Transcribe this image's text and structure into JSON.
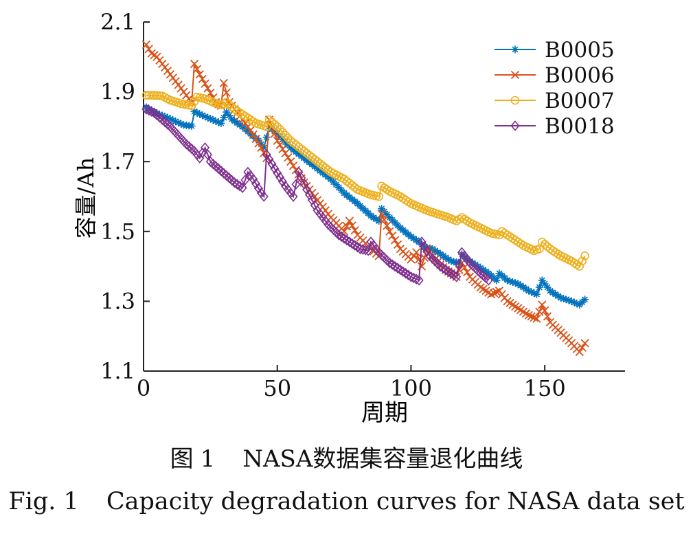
{
  "chart_data": {
    "type": "line",
    "xlabel": "周期",
    "ylabel": "容量/Ah",
    "xlim": [
      0,
      180
    ],
    "ylim": [
      1.1,
      2.1
    ],
    "xticks": [
      0,
      50,
      100,
      150
    ],
    "yticks": [
      1.1,
      1.3,
      1.5,
      1.7,
      1.9,
      2.1
    ],
    "xtick_labels": [
      "0",
      "50",
      "100",
      "150"
    ],
    "ytick_labels": [
      "1.1",
      "1.3",
      "1.5",
      "1.7",
      "1.9",
      "2.1"
    ],
    "legend_position": "top-right",
    "series": [
      {
        "name": "B0005",
        "color": "#0072bd",
        "marker": "asterisk",
        "points": [
          [
            1,
            1.856
          ],
          [
            3,
            1.846
          ],
          [
            6,
            1.835
          ],
          [
            9,
            1.826
          ],
          [
            12,
            1.815
          ],
          [
            15,
            1.805
          ],
          [
            18,
            1.802
          ],
          [
            19,
            1.844
          ],
          [
            21,
            1.836
          ],
          [
            24,
            1.826
          ],
          [
            27,
            1.816
          ],
          [
            29,
            1.81
          ],
          [
            31,
            1.842
          ],
          [
            33,
            1.822
          ],
          [
            37,
            1.8
          ],
          [
            40,
            1.78
          ],
          [
            43,
            1.76
          ],
          [
            45,
            1.74
          ],
          [
            47,
            1.8
          ],
          [
            50,
            1.78
          ],
          [
            55,
            1.74
          ],
          [
            60,
            1.71
          ],
          [
            65,
            1.68
          ],
          [
            70,
            1.65
          ],
          [
            75,
            1.61
          ],
          [
            80,
            1.58
          ],
          [
            85,
            1.545
          ],
          [
            88,
            1.53
          ],
          [
            89,
            1.565
          ],
          [
            92,
            1.54
          ],
          [
            96,
            1.51
          ],
          [
            100,
            1.485
          ],
          [
            103,
            1.47
          ],
          [
            105,
            1.455
          ],
          [
            108,
            1.45
          ],
          [
            112,
            1.43
          ],
          [
            115,
            1.415
          ],
          [
            118,
            1.41
          ],
          [
            119,
            1.435
          ],
          [
            121,
            1.42
          ],
          [
            125,
            1.4
          ],
          [
            129,
            1.38
          ],
          [
            132,
            1.36
          ],
          [
            133,
            1.38
          ],
          [
            136,
            1.36
          ],
          [
            140,
            1.35
          ],
          [
            144,
            1.33
          ],
          [
            147,
            1.32
          ],
          [
            149,
            1.36
          ],
          [
            152,
            1.33
          ],
          [
            156,
            1.31
          ],
          [
            160,
            1.3
          ],
          [
            163,
            1.29
          ],
          [
            165,
            1.305
          ]
        ]
      },
      {
        "name": "B0006",
        "color": "#d95319",
        "marker": "x",
        "points": [
          [
            1,
            2.035
          ],
          [
            3,
            2.01
          ],
          [
            5,
            2.0
          ],
          [
            7,
            1.98
          ],
          [
            10,
            1.95
          ],
          [
            13,
            1.92
          ],
          [
            16,
            1.89
          ],
          [
            18,
            1.87
          ],
          [
            19,
            1.98
          ],
          [
            21,
            1.95
          ],
          [
            24,
            1.91
          ],
          [
            27,
            1.87
          ],
          [
            29,
            1.86
          ],
          [
            30,
            1.925
          ],
          [
            32,
            1.87
          ],
          [
            36,
            1.83
          ],
          [
            40,
            1.79
          ],
          [
            44,
            1.74
          ],
          [
            46,
            1.71
          ],
          [
            47,
            1.82
          ],
          [
            50,
            1.76
          ],
          [
            55,
            1.7
          ],
          [
            60,
            1.64
          ],
          [
            65,
            1.59
          ],
          [
            70,
            1.54
          ],
          [
            75,
            1.5
          ],
          [
            77,
            1.53
          ],
          [
            80,
            1.49
          ],
          [
            85,
            1.45
          ],
          [
            88,
            1.43
          ],
          [
            89,
            1.55
          ],
          [
            92,
            1.5
          ],
          [
            96,
            1.45
          ],
          [
            100,
            1.42
          ],
          [
            102,
            1.44
          ],
          [
            104,
            1.4
          ],
          [
            106,
            1.45
          ],
          [
            109,
            1.42
          ],
          [
            113,
            1.39
          ],
          [
            117,
            1.37
          ],
          [
            119,
            1.41
          ],
          [
            122,
            1.37
          ],
          [
            126,
            1.34
          ],
          [
            130,
            1.32
          ],
          [
            133,
            1.33
          ],
          [
            136,
            1.3
          ],
          [
            140,
            1.28
          ],
          [
            144,
            1.26
          ],
          [
            147,
            1.25
          ],
          [
            149,
            1.29
          ],
          [
            152,
            1.24
          ],
          [
            156,
            1.21
          ],
          [
            160,
            1.18
          ],
          [
            163,
            1.155
          ],
          [
            165,
            1.18
          ]
        ]
      },
      {
        "name": "B0007",
        "color": "#edb120",
        "marker": "circle",
        "points": [
          [
            1,
            1.89
          ],
          [
            4,
            1.89
          ],
          [
            7,
            1.888
          ],
          [
            10,
            1.876
          ],
          [
            14,
            1.866
          ],
          [
            18,
            1.86
          ],
          [
            20,
            1.885
          ],
          [
            23,
            1.88
          ],
          [
            26,
            1.87
          ],
          [
            29,
            1.862
          ],
          [
            31,
            1.87
          ],
          [
            34,
            1.85
          ],
          [
            38,
            1.83
          ],
          [
            42,
            1.81
          ],
          [
            46,
            1.8
          ],
          [
            47,
            1.82
          ],
          [
            50,
            1.8
          ],
          [
            55,
            1.76
          ],
          [
            60,
            1.73
          ],
          [
            65,
            1.7
          ],
          [
            70,
            1.67
          ],
          [
            75,
            1.65
          ],
          [
            80,
            1.62
          ],
          [
            85,
            1.605
          ],
          [
            88,
            1.6
          ],
          [
            89,
            1.63
          ],
          [
            92,
            1.615
          ],
          [
            96,
            1.6
          ],
          [
            100,
            1.58
          ],
          [
            103,
            1.57
          ],
          [
            106,
            1.56
          ],
          [
            110,
            1.55
          ],
          [
            114,
            1.54
          ],
          [
            117,
            1.53
          ],
          [
            119,
            1.54
          ],
          [
            122,
            1.525
          ],
          [
            126,
            1.51
          ],
          [
            130,
            1.495
          ],
          [
            133,
            1.49
          ],
          [
            134,
            1.5
          ],
          [
            138,
            1.48
          ],
          [
            142,
            1.46
          ],
          [
            146,
            1.445
          ],
          [
            148,
            1.45
          ],
          [
            149,
            1.47
          ],
          [
            152,
            1.45
          ],
          [
            156,
            1.43
          ],
          [
            160,
            1.415
          ],
          [
            163,
            1.4
          ],
          [
            165,
            1.43
          ]
        ]
      },
      {
        "name": "B0018",
        "color": "#7e2f8e",
        "marker": "diamond",
        "points": [
          [
            1,
            1.85
          ],
          [
            4,
            1.84
          ],
          [
            7,
            1.82
          ],
          [
            10,
            1.8
          ],
          [
            13,
            1.775
          ],
          [
            16,
            1.75
          ],
          [
            19,
            1.73
          ],
          [
            21,
            1.71
          ],
          [
            23,
            1.74
          ],
          [
            25,
            1.7
          ],
          [
            28,
            1.68
          ],
          [
            31,
            1.66
          ],
          [
            34,
            1.64
          ],
          [
            37,
            1.625
          ],
          [
            39,
            1.67
          ],
          [
            41,
            1.65
          ],
          [
            44,
            1.61
          ],
          [
            45,
            1.6
          ],
          [
            46,
            1.72
          ],
          [
            49,
            1.68
          ],
          [
            53,
            1.63
          ],
          [
            56,
            1.6
          ],
          [
            58,
            1.67
          ],
          [
            61,
            1.62
          ],
          [
            65,
            1.56
          ],
          [
            69,
            1.52
          ],
          [
            73,
            1.49
          ],
          [
            77,
            1.47
          ],
          [
            81,
            1.45
          ],
          [
            84,
            1.445
          ],
          [
            85,
            1.47
          ],
          [
            88,
            1.44
          ],
          [
            92,
            1.41
          ],
          [
            96,
            1.39
          ],
          [
            100,
            1.37
          ],
          [
            103,
            1.36
          ],
          [
            104,
            1.47
          ],
          [
            107,
            1.43
          ],
          [
            111,
            1.4
          ],
          [
            115,
            1.38
          ],
          [
            117,
            1.37
          ],
          [
            119,
            1.44
          ],
          [
            122,
            1.41
          ],
          [
            126,
            1.38
          ],
          [
            129,
            1.36
          ]
        ]
      }
    ]
  },
  "caption": {
    "cn_fig": "图",
    "cn_num": "1",
    "cn_text": "NASA数据集容量退化曲线",
    "en_fig": "Fig. 1",
    "en_text": "Capacity degradation curves for NASA data set"
  }
}
